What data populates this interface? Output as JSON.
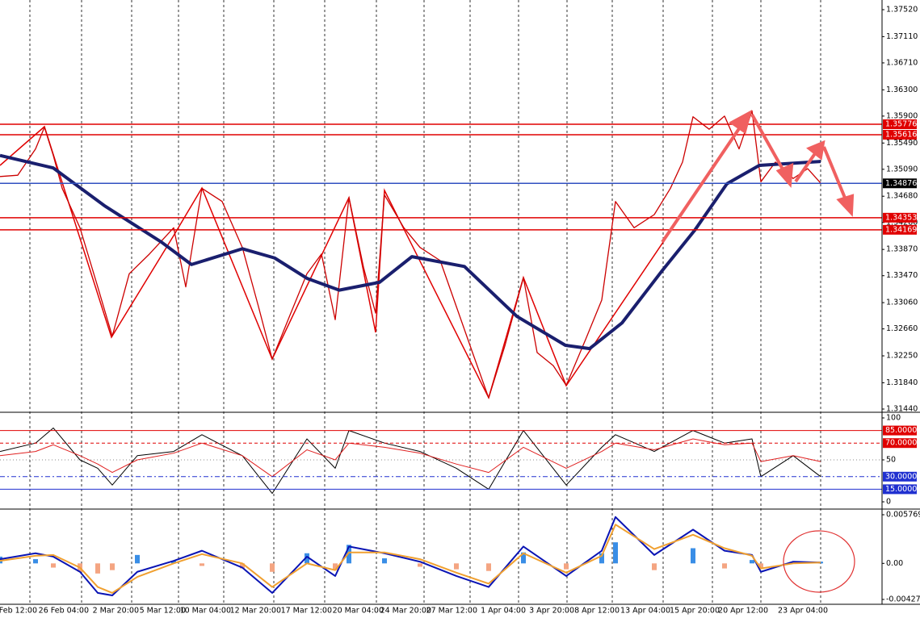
{
  "chart_data": [
    {
      "type": "line",
      "ylim": [
        1.3144,
        1.3752
      ],
      "yticks": [
        {
          "value": 1.3752,
          "label": "1.37520"
        },
        {
          "value": 1.3711,
          "label": "1.37110"
        },
        {
          "value": 1.3671,
          "label": "1.36710"
        },
        {
          "value": 1.363,
          "label": "1.36300"
        },
        {
          "value": 1.359,
          "label": "1.35900"
        },
        {
          "value": 1.3549,
          "label": "1.35490"
        },
        {
          "value": 1.3509,
          "label": "1.35090"
        },
        {
          "value": 1.3468,
          "label": "1.34680"
        },
        {
          "value": 1.3428,
          "label": "1.34280"
        },
        {
          "value": 1.3387,
          "label": "1.33870"
        },
        {
          "value": 1.3347,
          "label": "1.33470"
        },
        {
          "value": 1.3306,
          "label": "1.33060"
        },
        {
          "value": 1.3266,
          "label": "1.32660"
        },
        {
          "value": 1.3225,
          "label": "1.32250"
        },
        {
          "value": 1.3184,
          "label": "1.31840"
        },
        {
          "value": 1.3144,
          "label": "1.31440"
        }
      ],
      "levels": [
        {
          "value": 1.35776,
          "label": "1.35776",
          "color": "#e00000",
          "style": "solid"
        },
        {
          "value": 1.35616,
          "label": "1.35616",
          "color": "#e00000",
          "style": "solid"
        },
        {
          "value": 1.34876,
          "label": "1.34876",
          "color": "#3050c0",
          "style": "solid",
          "label_color": "#000000"
        },
        {
          "value": 1.34353,
          "label": "1.34353",
          "color": "#e00000",
          "style": "solid"
        },
        {
          "value": 1.34169,
          "label": "1.34169",
          "color": "#e00000",
          "style": "solid"
        }
      ],
      "series": [
        {
          "color": "#cc0000",
          "x": [
            0,
            22,
            44,
            55,
            66,
            77,
            99,
            121,
            139,
            160,
            185,
            215,
            230,
            250,
            275,
            300,
            320,
            337,
            360,
            380,
            398,
            415,
            432,
            450,
            465,
            476,
            500,
            520,
            545,
            565,
            585,
            605,
            625,
            648,
            665,
            685,
            701,
            725,
            745,
            762,
            785,
            810,
            830,
            845,
            858,
            878,
            897,
            915,
            931,
            942,
            960,
            982,
            1000,
            1016
          ],
          "values": [
            1.3498,
            1.35,
            1.354,
            1.3573,
            1.353,
            1.348,
            1.342,
            1.333,
            1.3255,
            1.335,
            1.338,
            1.342,
            1.333,
            1.348,
            1.346,
            1.339,
            1.33,
            1.322,
            1.329,
            1.335,
            1.338,
            1.328,
            1.3466,
            1.336,
            1.329,
            1.347,
            1.342,
            1.339,
            1.337,
            1.33,
            1.323,
            1.3161,
            1.324,
            1.3344,
            1.323,
            1.321,
            1.318,
            1.325,
            1.331,
            1.346,
            1.342,
            1.344,
            1.348,
            1.352,
            1.3589,
            1.357,
            1.359,
            1.354,
            1.3598,
            1.349,
            1.352,
            1.3495,
            1.351,
            1.3488
          ]
        },
        {
          "color": "#1a1f6e",
          "x": [
            0,
            66,
            130,
            200,
            237,
            300,
            340,
            380,
            420,
            470,
            510,
            575,
            640,
            700,
            730,
            770,
            820,
            860,
            900,
            940,
            1016
          ],
          "values": [
            1.353,
            1.3511,
            1.3453,
            1.3398,
            1.3364,
            1.3388,
            1.3374,
            1.3343,
            1.3325,
            1.3337,
            1.3376,
            1.3361,
            1.3285,
            1.3241,
            1.3236,
            1.3275,
            1.3355,
            1.3416,
            1.3487,
            1.3515,
            1.3521
          ]
        }
      ]
    },
    {
      "type": "line",
      "ylim": [
        0,
        100
      ],
      "yticks": [
        0,
        50,
        100
      ],
      "levels": [
        {
          "value": 85,
          "label": "85.0000",
          "color": "#e00000",
          "style": "solid"
        },
        {
          "value": 70,
          "label": "70.0000",
          "color": "#e00000",
          "style": "dash"
        },
        {
          "value": 30,
          "label": "30.0000",
          "color": "#2030d0",
          "style": "dashdot"
        },
        {
          "value": 15,
          "label": "15.0000",
          "color": "#2030d0",
          "style": "solid"
        }
      ],
      "series": [
        {
          "color": "#000000",
          "x": [
            0,
            44,
            66,
            99,
            121,
            139,
            170,
            215,
            250,
            300,
            337,
            380,
            415,
            432,
            476,
            520,
            565,
            605,
            648,
            701,
            745,
            762,
            810,
            858,
            897,
            931,
            942,
            982,
            1016
          ],
          "values": [
            60,
            70,
            88,
            50,
            40,
            20,
            55,
            60,
            80,
            55,
            10,
            75,
            40,
            85,
            70,
            60,
            40,
            15,
            85,
            20,
            65,
            80,
            60,
            85,
            70,
            75,
            30,
            55,
            30
          ]
        },
        {
          "color": "#e02020",
          "x": [
            0,
            44,
            66,
            99,
            121,
            139,
            170,
            215,
            250,
            300,
            337,
            380,
            415,
            432,
            476,
            520,
            565,
            605,
            648,
            701,
            745,
            762,
            810,
            858,
            897,
            931,
            942,
            982,
            1016
          ],
          "values": [
            55,
            60,
            68,
            55,
            45,
            35,
            50,
            58,
            70,
            55,
            30,
            62,
            50,
            70,
            65,
            58,
            45,
            35,
            65,
            40,
            60,
            70,
            62,
            75,
            68,
            70,
            48,
            55,
            48
          ]
        }
      ]
    },
    {
      "type": "combo",
      "ylim": [
        -0.004276,
        0.0057697
      ],
      "yticks": [
        0.0057697,
        {
          "value": 0,
          "label": "0.00"
        },
        -0.004276
      ],
      "xlim": [
        0,
        1092
      ],
      "xticks": [
        {
          "value": 37,
          "label": "Feb 12:00"
        },
        {
          "value": 101,
          "label": "26 Feb 04:00"
        },
        {
          "value": 163,
          "label": "2 Mar 20:00"
        },
        {
          "value": 221,
          "label": "5 Mar 12:00"
        },
        {
          "value": 277,
          "label": "10 Mar 04:00"
        },
        {
          "value": 339,
          "label": "12 Mar 20:00"
        },
        {
          "value": 402,
          "label": "17 Mar 12:00"
        },
        {
          "value": 466,
          "label": "20 Mar 04:00"
        },
        {
          "value": 525,
          "label": "24 Mar 20:00"
        },
        {
          "value": 582,
          "label": "27 Mar 12:00"
        },
        {
          "value": 642,
          "label": "1 Apr 04:00"
        },
        {
          "value": 702,
          "label": "3 Apr 20:00"
        },
        {
          "value": 758,
          "label": "8 Apr 12:00"
        },
        {
          "value": 821,
          "label": "13 Apr 04:00"
        },
        {
          "value": 882,
          "label": "15 Apr 20:00"
        },
        {
          "value": 942,
          "label": "20 Apr 12:00"
        },
        {
          "value": 1016,
          "label": "23 Apr 04:00"
        }
      ],
      "bars": {
        "color_up": "#3a8ee6",
        "color_down": "#f4a582",
        "x": [
          0,
          44,
          66,
          99,
          121,
          139,
          170,
          215,
          250,
          300,
          337,
          380,
          415,
          432,
          476,
          520,
          565,
          605,
          648,
          701,
          745,
          762,
          810,
          858,
          897,
          931,
          942,
          982,
          1016
        ],
        "values": [
          0.0008,
          0.0005,
          -0.0005,
          -0.001,
          -0.0012,
          -0.0008,
          0.001,
          0.0003,
          -0.0003,
          -0.0006,
          -0.001,
          0.0012,
          -0.0008,
          0.0022,
          0.0006,
          -0.0004,
          -0.0007,
          -0.0009,
          0.0013,
          -0.0007,
          0.0012,
          0.0025,
          -0.0008,
          0.0018,
          -0.0006,
          0.0004,
          -0.0005,
          0.0001,
          0.0002
        ]
      },
      "series": [
        {
          "color": "#0a14b4",
          "x": [
            0,
            44,
            66,
            99,
            121,
            139,
            170,
            215,
            250,
            300,
            337,
            380,
            415,
            432,
            476,
            520,
            565,
            605,
            648,
            701,
            745,
            762,
            810,
            858,
            897,
            931,
            942,
            982,
            1016
          ],
          "values": [
            0.0005,
            0.0012,
            0.0008,
            -0.001,
            -0.0035,
            -0.0038,
            -0.001,
            0.0003,
            0.0015,
            -0.0005,
            -0.0035,
            0.0008,
            -0.0015,
            0.002,
            0.0012,
            0.0002,
            -0.0015,
            -0.0028,
            0.002,
            -0.0015,
            0.0015,
            0.0055,
            0.001,
            0.004,
            0.0015,
            0.001,
            -0.001,
            0.0002,
            0.0001
          ]
        },
        {
          "color": "#f0a030",
          "x": [
            0,
            44,
            66,
            99,
            121,
            139,
            170,
            215,
            250,
            300,
            337,
            380,
            415,
            432,
            476,
            520,
            565,
            605,
            648,
            701,
            745,
            762,
            810,
            858,
            897,
            931,
            942,
            982,
            1016
          ],
          "values": [
            0.0003,
            0.0009,
            0.001,
            -0.0005,
            -0.0028,
            -0.0035,
            -0.0016,
            0,
            0.0011,
            0,
            -0.0028,
            0,
            -0.0008,
            0.0013,
            0.0013,
            0.0005,
            -0.0011,
            -0.0024,
            0.0012,
            -0.0011,
            0.0009,
            0.0046,
            0.0017,
            0.0034,
            0.0018,
            0.0009,
            -0.0006,
            0,
            0.0001
          ]
        }
      ]
    }
  ]
}
